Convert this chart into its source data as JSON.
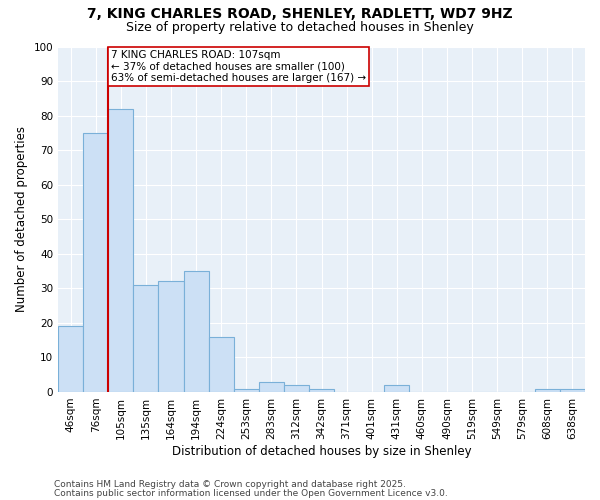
{
  "title1": "7, KING CHARLES ROAD, SHENLEY, RADLETT, WD7 9HZ",
  "title2": "Size of property relative to detached houses in Shenley",
  "xlabel": "Distribution of detached houses by size in Shenley",
  "ylabel": "Number of detached properties",
  "categories": [
    "46sqm",
    "76sqm",
    "105sqm",
    "135sqm",
    "164sqm",
    "194sqm",
    "224sqm",
    "253sqm",
    "283sqm",
    "312sqm",
    "342sqm",
    "371sqm",
    "401sqm",
    "431sqm",
    "460sqm",
    "490sqm",
    "519sqm",
    "549sqm",
    "579sqm",
    "608sqm",
    "638sqm"
  ],
  "values": [
    19,
    75,
    82,
    31,
    32,
    35,
    16,
    1,
    3,
    2,
    1,
    0,
    0,
    2,
    0,
    0,
    0,
    0,
    0,
    1,
    1
  ],
  "bar_color": "#cce0f5",
  "bar_edge_color": "#7ab0d8",
  "redline_index": 2,
  "annotation_text": "7 KING CHARLES ROAD: 107sqm\n← 37% of detached houses are smaller (100)\n63% of semi-detached houses are larger (167) →",
  "annotation_box_color": "#ffffff",
  "annotation_box_edge": "#cc0000",
  "redline_color": "#cc0000",
  "ylim": [
    0,
    100
  ],
  "yticks": [
    0,
    10,
    20,
    30,
    40,
    50,
    60,
    70,
    80,
    90,
    100
  ],
  "footer1": "Contains HM Land Registry data © Crown copyright and database right 2025.",
  "footer2": "Contains public sector information licensed under the Open Government Licence v3.0.",
  "bg_color": "#ffffff",
  "plot_bg_color": "#e8f0f8",
  "title_fontsize": 10,
  "subtitle_fontsize": 9,
  "axis_label_fontsize": 8.5,
  "tick_fontsize": 7.5,
  "annotation_fontsize": 7.5,
  "footer_fontsize": 6.5
}
